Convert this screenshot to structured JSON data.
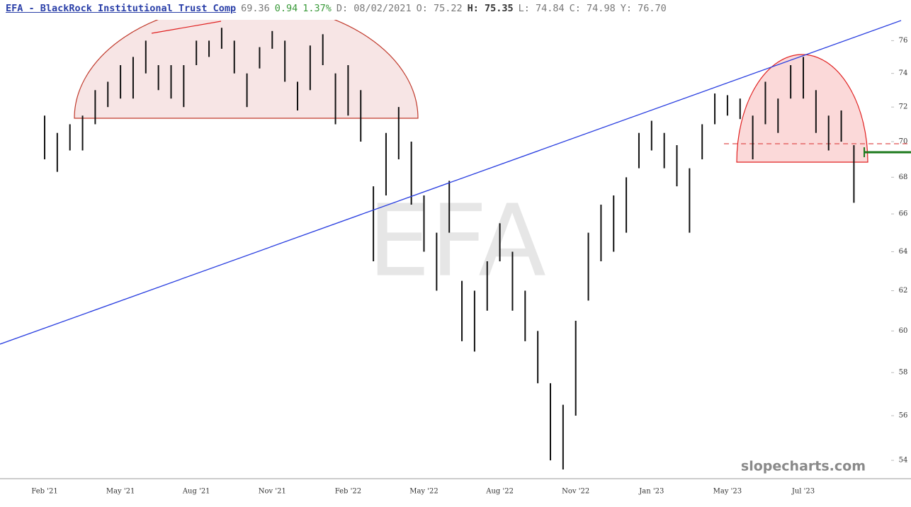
{
  "chart_data": {
    "type": "range-bar",
    "title": "EFA - BlackRock Institutional Trust Comp",
    "header": [
      "69.36",
      "0.94",
      "1.37%",
      "D: 08/02/2021",
      "O: 75.22",
      "H: 75.35",
      "L: 74.84",
      "C: 74.98",
      "Y: 76.70"
    ],
    "watermark": "EFA",
    "brand": "slopecharts.com",
    "log_scale": true,
    "color": "#111111",
    "ylim": [
      53.2,
      77.3
    ],
    "yticks": [
      54,
      56,
      58,
      60,
      62,
      64,
      66,
      68,
      70,
      72,
      74,
      76
    ],
    "categories": [
      "Feb '21",
      null,
      null,
      null,
      null,
      null,
      "May '21",
      null,
      null,
      null,
      null,
      null,
      "Aug '21",
      null,
      null,
      null,
      null,
      null,
      "Nov '21",
      null,
      null,
      null,
      null,
      null,
      "Feb '22",
      null,
      null,
      null,
      null,
      null,
      "May '22",
      null,
      null,
      null,
      null,
      null,
      "Aug '22",
      null,
      null,
      null,
      null,
      null,
      "Nov '22",
      null,
      null,
      null,
      null,
      null,
      "Jan '23",
      null,
      null,
      null,
      null,
      null,
      "May '23",
      null,
      null,
      null,
      null,
      null,
      "Jul '23",
      null,
      null,
      null,
      null
    ],
    "lows": [
      69,
      68.3,
      69.5,
      69.5,
      71,
      72,
      72.5,
      72.5,
      74,
      73,
      72.5,
      72,
      74.5,
      75,
      75.5,
      74,
      72,
      74.3,
      75.5,
      73.5,
      71.8,
      73,
      74.5,
      71,
      71.5,
      70,
      63.5,
      67,
      69,
      66.5,
      64,
      62,
      65,
      59.5,
      59,
      61,
      63.5,
      61,
      59.5,
      57.5,
      54,
      53.6,
      56,
      61.5,
      63.5,
      64,
      65,
      68.5,
      69.5,
      68.5,
      67.5,
      65,
      69,
      71,
      71.5,
      71.3,
      69,
      71,
      70.5,
      72.5,
      72.5,
      70.5,
      69.5,
      70,
      66.6
    ],
    "highs": [
      71.5,
      70.5,
      71,
      71.5,
      73,
      73.5,
      74.5,
      75,
      76,
      74.5,
      74.5,
      74.5,
      76,
      76,
      76.8,
      76,
      74,
      75.6,
      76.6,
      76,
      73.5,
      75.7,
      76.4,
      74,
      74.5,
      73,
      67.5,
      70.5,
      72,
      70,
      67,
      65,
      67.8,
      62.5,
      62,
      63.5,
      65.5,
      64,
      62,
      60,
      57.5,
      56.5,
      60.5,
      65,
      66.5,
      67,
      68,
      70.5,
      71.2,
      70.5,
      69.8,
      68.5,
      71,
      72.8,
      72.7,
      72.5,
      71.5,
      73.5,
      72.5,
      74.5,
      75,
      73,
      71.5,
      71.8,
      69.8
    ]
  }
}
